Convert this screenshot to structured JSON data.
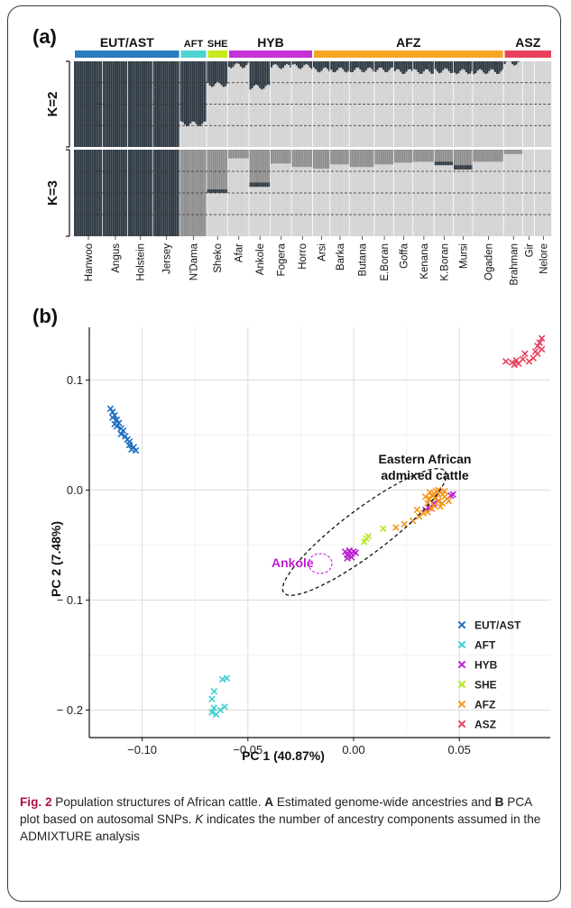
{
  "panel_a": {
    "letter": "(a)",
    "groups": [
      {
        "name": "EUT/AST",
        "color": "#2a7bbf",
        "breeds": [
          "Hanwoo",
          "Angus",
          "Holstein",
          "Jersey"
        ]
      },
      {
        "name": "AFT",
        "color": "#4fd3d3",
        "breeds": [
          "N'Dama"
        ]
      },
      {
        "name": "SHE",
        "color": "#c6ea1a",
        "breeds": [
          "Sheko"
        ]
      },
      {
        "name": "HYB",
        "color": "#c533d6",
        "breeds": [
          "Afar",
          "Ankole",
          "Fogera",
          "Horro"
        ]
      },
      {
        "name": "AFZ",
        "color": "#f5a623",
        "breeds": [
          "Arsi",
          "Barka",
          "Butana",
          "E.Boran",
          "Goffa",
          "Kenana",
          "K.Boran",
          "Mursi",
          "Ogaden"
        ]
      },
      {
        "name": "ASZ",
        "color": "#e8415e",
        "breeds": [
          "Brahman",
          "Gir",
          "Nelore"
        ]
      }
    ],
    "k_labels": [
      "K=2",
      "K=3"
    ],
    "colors": {
      "dark": "#2b3640",
      "mid": "#8c8c8c",
      "light": "#d3d3d3"
    }
  },
  "panel_b": {
    "letter": "(b)",
    "annotation_main": [
      "Eastern African",
      "admixed cattle"
    ],
    "annotation_ankole": "Ankole"
  },
  "chart_data": {
    "type": "scatter",
    "xlabel": "PC 1 (40.87%)",
    "ylabel": "PC 2 (7.48%)",
    "xlim": [
      -0.125,
      0.093
    ],
    "ylim": [
      -0.225,
      0.148
    ],
    "xticks": [
      -0.1,
      -0.05,
      0.0,
      0.05
    ],
    "xtick_labels": [
      "−0.10",
      "−0.05",
      "0.00",
      "0.05"
    ],
    "yticks": [
      0.1,
      0.0,
      -0.1,
      -0.2
    ],
    "ytick_labels": [
      "0.1",
      "0.0",
      "− 0.1",
      "− 0.2"
    ],
    "grid": true,
    "legend_position": "bottom-right",
    "marker": "x",
    "series": [
      {
        "name": "EUT/AST",
        "color": "#1e6fc0",
        "points": [
          [
            -0.115,
            0.074
          ],
          [
            -0.114,
            0.071
          ],
          [
            -0.113,
            0.068
          ],
          [
            -0.114,
            0.066
          ],
          [
            -0.112,
            0.064
          ],
          [
            -0.111,
            0.061
          ],
          [
            -0.112,
            0.058
          ],
          [
            -0.11,
            0.056
          ],
          [
            -0.109,
            0.054
          ],
          [
            -0.11,
            0.051
          ],
          [
            -0.108,
            0.049
          ],
          [
            -0.107,
            0.046
          ],
          [
            -0.106,
            0.044
          ],
          [
            -0.106,
            0.041
          ],
          [
            -0.104,
            0.039
          ],
          [
            -0.105,
            0.037
          ],
          [
            -0.103,
            0.036
          ],
          [
            -0.113,
            0.06
          ]
        ]
      },
      {
        "name": "AFT",
        "color": "#3ccfcf",
        "points": [
          [
            -0.067,
            -0.19
          ],
          [
            -0.066,
            -0.183
          ],
          [
            -0.062,
            -0.172
          ],
          [
            -0.06,
            -0.171
          ],
          [
            -0.067,
            -0.202
          ],
          [
            -0.065,
            -0.204
          ],
          [
            -0.063,
            -0.2
          ],
          [
            -0.061,
            -0.197
          ],
          [
            -0.066,
            -0.198
          ]
        ]
      },
      {
        "name": "HYB",
        "color": "#b81fd0",
        "points": [
          [
            -0.004,
            -0.056
          ],
          [
            -0.003,
            -0.059
          ],
          [
            -0.002,
            -0.055
          ],
          [
            -0.001,
            -0.058
          ],
          [
            0.0,
            -0.056
          ],
          [
            -0.003,
            -0.062
          ],
          [
            -0.001,
            -0.061
          ],
          [
            0.001,
            -0.057
          ],
          [
            0.034,
            -0.018
          ],
          [
            0.036,
            -0.016
          ],
          [
            0.038,
            -0.012
          ],
          [
            0.04,
            -0.01
          ],
          [
            0.046,
            -0.005
          ],
          [
            0.047,
            -0.004
          ]
        ]
      },
      {
        "name": "SHE",
        "color": "#b5e61d",
        "points": [
          [
            0.006,
            -0.044
          ],
          [
            0.007,
            -0.042
          ],
          [
            0.005,
            -0.047
          ],
          [
            0.014,
            -0.035
          ]
        ]
      },
      {
        "name": "AFZ",
        "color": "#f5961e",
        "points": [
          [
            0.02,
            -0.034
          ],
          [
            0.024,
            -0.031
          ],
          [
            0.028,
            -0.028
          ],
          [
            0.031,
            -0.024
          ],
          [
            0.033,
            -0.021
          ],
          [
            0.035,
            -0.012
          ],
          [
            0.036,
            -0.008
          ],
          [
            0.037,
            -0.005
          ],
          [
            0.038,
            -0.003
          ],
          [
            0.039,
            -0.001
          ],
          [
            0.04,
            0.0
          ],
          [
            0.041,
            -0.002
          ],
          [
            0.042,
            -0.004
          ],
          [
            0.043,
            -0.006
          ],
          [
            0.044,
            -0.008
          ],
          [
            0.04,
            -0.01
          ],
          [
            0.038,
            -0.014
          ],
          [
            0.042,
            -0.012
          ],
          [
            0.036,
            -0.002
          ],
          [
            0.034,
            -0.006
          ],
          [
            0.045,
            -0.01
          ],
          [
            0.039,
            -0.007
          ],
          [
            0.041,
            -0.015
          ],
          [
            0.043,
            -0.001
          ],
          [
            0.037,
            -0.017
          ],
          [
            0.035,
            -0.02
          ],
          [
            0.03,
            -0.018
          ],
          [
            0.04,
            -0.004
          ]
        ]
      },
      {
        "name": "ASZ",
        "color": "#e8415e",
        "points": [
          [
            0.072,
            0.117
          ],
          [
            0.075,
            0.116
          ],
          [
            0.076,
            0.114
          ],
          [
            0.077,
            0.118
          ],
          [
            0.078,
            0.115
          ],
          [
            0.08,
            0.119
          ],
          [
            0.081,
            0.124
          ],
          [
            0.083,
            0.117
          ],
          [
            0.085,
            0.12
          ],
          [
            0.086,
            0.126
          ],
          [
            0.087,
            0.131
          ],
          [
            0.088,
            0.134
          ],
          [
            0.089,
            0.138
          ],
          [
            0.087,
            0.124
          ],
          [
            0.089,
            0.128
          ]
        ]
      }
    ]
  },
  "caption": {
    "fig_no": "Fig. 2",
    "text_1": " Population structures of African cattle. ",
    "bold_a": "A",
    "text_2": " Estimated genome-wide ancestries and ",
    "bold_b": "B",
    "text_3": " PCA plot based on autosomal SNPs. ",
    "italic_k": "K",
    "text_4": " indicates the number of ancestry components assumed in the ADMIXTURE analysis"
  }
}
